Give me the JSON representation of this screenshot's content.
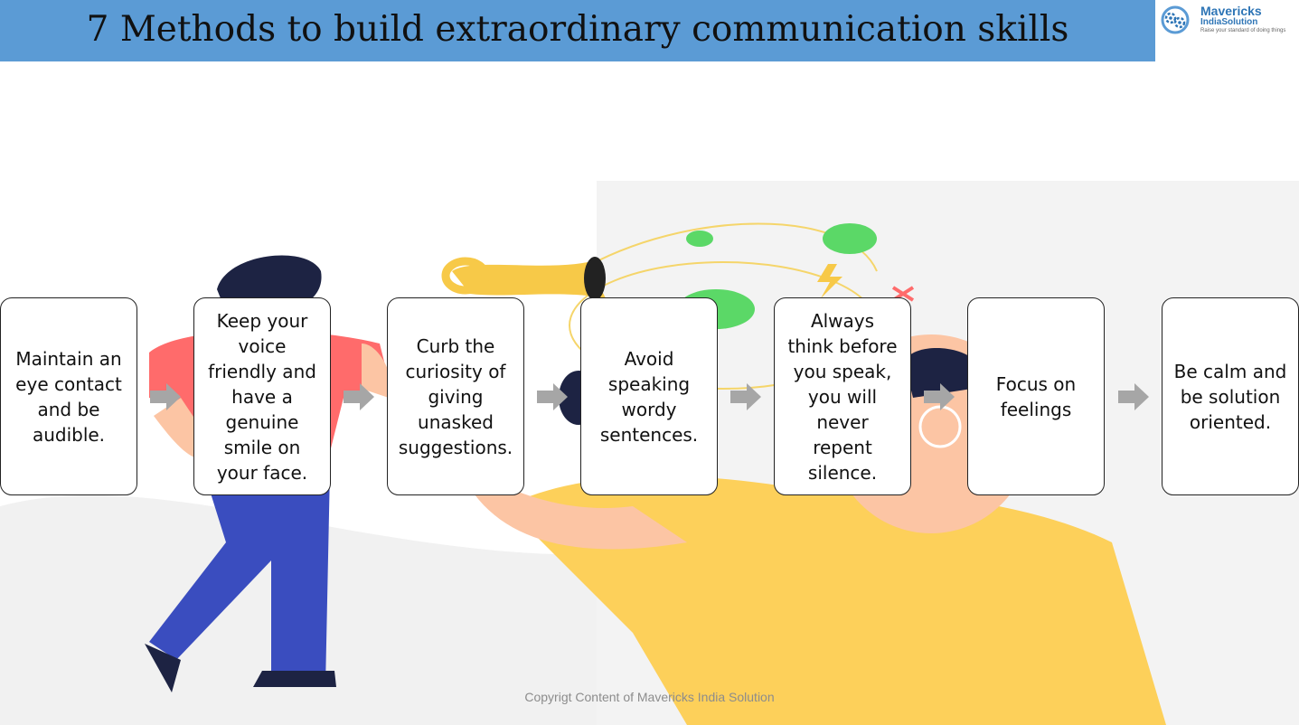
{
  "title": "7 Methods to build extraordinary communication skills",
  "logo": {
    "name": "Mavericks",
    "sub": "IndiaSolution",
    "tagline": "Raise your standard of doing things",
    "color": "#2e75b6",
    "icon": "gears-icon"
  },
  "steps": [
    {
      "text": "Maintain an\neye contact\nand be\naudible."
    },
    {
      "text": "Keep your\nvoice\nfriendly and\nhave a\ngenuine\nsmile on\nyour face."
    },
    {
      "text": "Curb the\ncuriosity of\ngiving\nunasked\nsuggestions."
    },
    {
      "text": "Avoid\nspeaking\nwordy\nsentences."
    },
    {
      "text": "Always\nthink before\nyou speak,\nyou will\nnever\nrepent\nsilence."
    },
    {
      "text": "Focus on\nfeelings"
    },
    {
      "text": "Be calm and\nbe solution\noriented."
    }
  ],
  "colors": {
    "header": "#5b9bd5",
    "arrow": "#a6a6a6",
    "box_border": "#222222"
  },
  "copyright": "Copyrigt Content of Mavericks India Solution"
}
